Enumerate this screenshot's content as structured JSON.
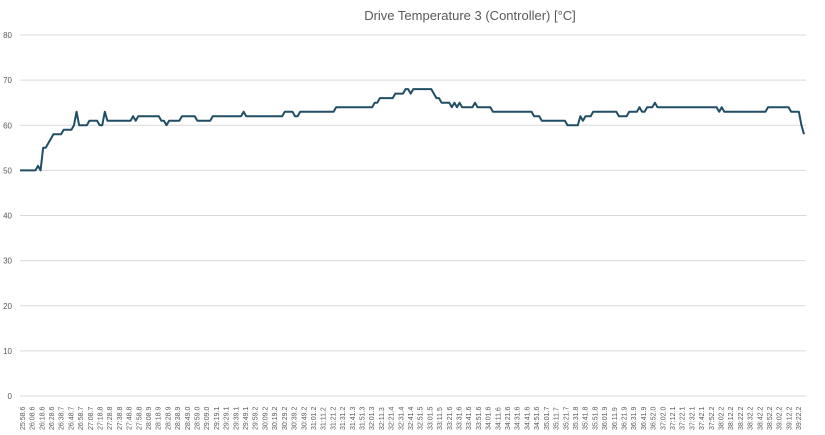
{
  "chart_data": {
    "type": "line",
    "title": "Drive Temperature 3 (Controller) [°C]",
    "xlabel": "",
    "ylabel": "",
    "ylim": [
      0,
      80
    ],
    "yticks": [
      0,
      10,
      20,
      30,
      40,
      50,
      60,
      70,
      80
    ],
    "grid": true,
    "legend": "none",
    "colors": {
      "line": "#1f4e65",
      "grid": "#d9d9d9",
      "text": "#595959"
    },
    "x_tick_labels": [
      "25:58.6",
      "26:08.6",
      "26:18.6",
      "26:28.6",
      "26:38.7",
      "26:48.7",
      "26:58.7",
      "27:08.7",
      "27:18.8",
      "27:28.8",
      "27:38.8",
      "27:48.8",
      "27:58.8",
      "28:08.9",
      "28:18.9",
      "28:28.9",
      "28:38.9",
      "28:49.0",
      "28:59.0",
      "29:09.0",
      "29:19.1",
      "29:29.1",
      "29:39.1",
      "29:49.1",
      "29:59.2",
      "30:09.2",
      "30:19.2",
      "30:29.2",
      "30:39.2",
      "30:49.2",
      "31:01.2",
      "31:11.2",
      "31:21.2",
      "31:31.2",
      "31:41.3",
      "31:51.3",
      "32:01.3",
      "32:11.3",
      "32:21.4",
      "32:31.4",
      "32:41.4",
      "32:51.5",
      "33:01.5",
      "33:11.5",
      "33:21.6",
      "33:31.6",
      "33:41.6",
      "33:51.6",
      "34:01.6",
      "34:11.6",
      "34:21.6",
      "34:31.6",
      "34:41.6",
      "34:51.6",
      "35:01.7",
      "35:11.7",
      "35:21.7",
      "35:31.8",
      "35:41.8",
      "35:51.8",
      "36:01.9",
      "36:11.9",
      "36:21.9",
      "36:31.9",
      "36:41.9",
      "36:52.0",
      "37:02.0",
      "37:12.1",
      "37:22.1",
      "37:32.1",
      "37:42.1",
      "37:52.2",
      "38:02.2",
      "38:12.2",
      "38:22.2",
      "38:32.2",
      "38:42.2",
      "38:52.2",
      "39:02.2",
      "39:12.2",
      "39:22.2"
    ],
    "series": [
      {
        "values": [
          50,
          50,
          50,
          50,
          50,
          50,
          50,
          51,
          50,
          55,
          55,
          56,
          57,
          58,
          58,
          58,
          58,
          59,
          59,
          59,
          59,
          60,
          63,
          60,
          60,
          60,
          60,
          61,
          61,
          61,
          61,
          60,
          60,
          63,
          61,
          61,
          61,
          61,
          61,
          61,
          61,
          61,
          61,
          61,
          62,
          61,
          62,
          62,
          62,
          62,
          62,
          62,
          62,
          62,
          62,
          61,
          61,
          60,
          61,
          61,
          61,
          61,
          61,
          62,
          62,
          62,
          62,
          62,
          62,
          61,
          61,
          61,
          61,
          61,
          61,
          62,
          62,
          62,
          62,
          62,
          62,
          62,
          62,
          62,
          62,
          62,
          62,
          63,
          62,
          62,
          62,
          62,
          62,
          62,
          62,
          62,
          62,
          62,
          62,
          62,
          62,
          62,
          62,
          63,
          63,
          63,
          63,
          62,
          62,
          63,
          63,
          63,
          63,
          63,
          63,
          63,
          63,
          63,
          63,
          63,
          63,
          63,
          63,
          64,
          64,
          64,
          64,
          64,
          64,
          64,
          64,
          64,
          64,
          64,
          64,
          64,
          64,
          64,
          65,
          65,
          66,
          66,
          66,
          66,
          66,
          66,
          67,
          67,
          67,
          67,
          68,
          68,
          67,
          68,
          68,
          68,
          68,
          68,
          68,
          68,
          68,
          67,
          66,
          66,
          65,
          65,
          65,
          65,
          64,
          65,
          64,
          65,
          64,
          64,
          64,
          64,
          64,
          65,
          64,
          64,
          64,
          64,
          64,
          64,
          63,
          63,
          63,
          63,
          63,
          63,
          63,
          63,
          63,
          63,
          63,
          63,
          63,
          63,
          63,
          63,
          62,
          62,
          62,
          61,
          61,
          61,
          61,
          61,
          61,
          61,
          61,
          61,
          61,
          60,
          60,
          60,
          60,
          60,
          62,
          61,
          62,
          62,
          62,
          63,
          63,
          63,
          63,
          63,
          63,
          63,
          63,
          63,
          63,
          62,
          62,
          62,
          62,
          63,
          63,
          63,
          63,
          64,
          63,
          63,
          64,
          64,
          64,
          65,
          64,
          64,
          64,
          64,
          64,
          64,
          64,
          64,
          64,
          64,
          64,
          64,
          64,
          64,
          64,
          64,
          64,
          64,
          64,
          64,
          64,
          64,
          64,
          64,
          63,
          64,
          63,
          63,
          63,
          63,
          63,
          63,
          63,
          63,
          63,
          63,
          63,
          63,
          63,
          63,
          63,
          63,
          63,
          64,
          64,
          64,
          64,
          64,
          64,
          64,
          64,
          64,
          63,
          63,
          63,
          63,
          60,
          58
        ]
      }
    ]
  }
}
